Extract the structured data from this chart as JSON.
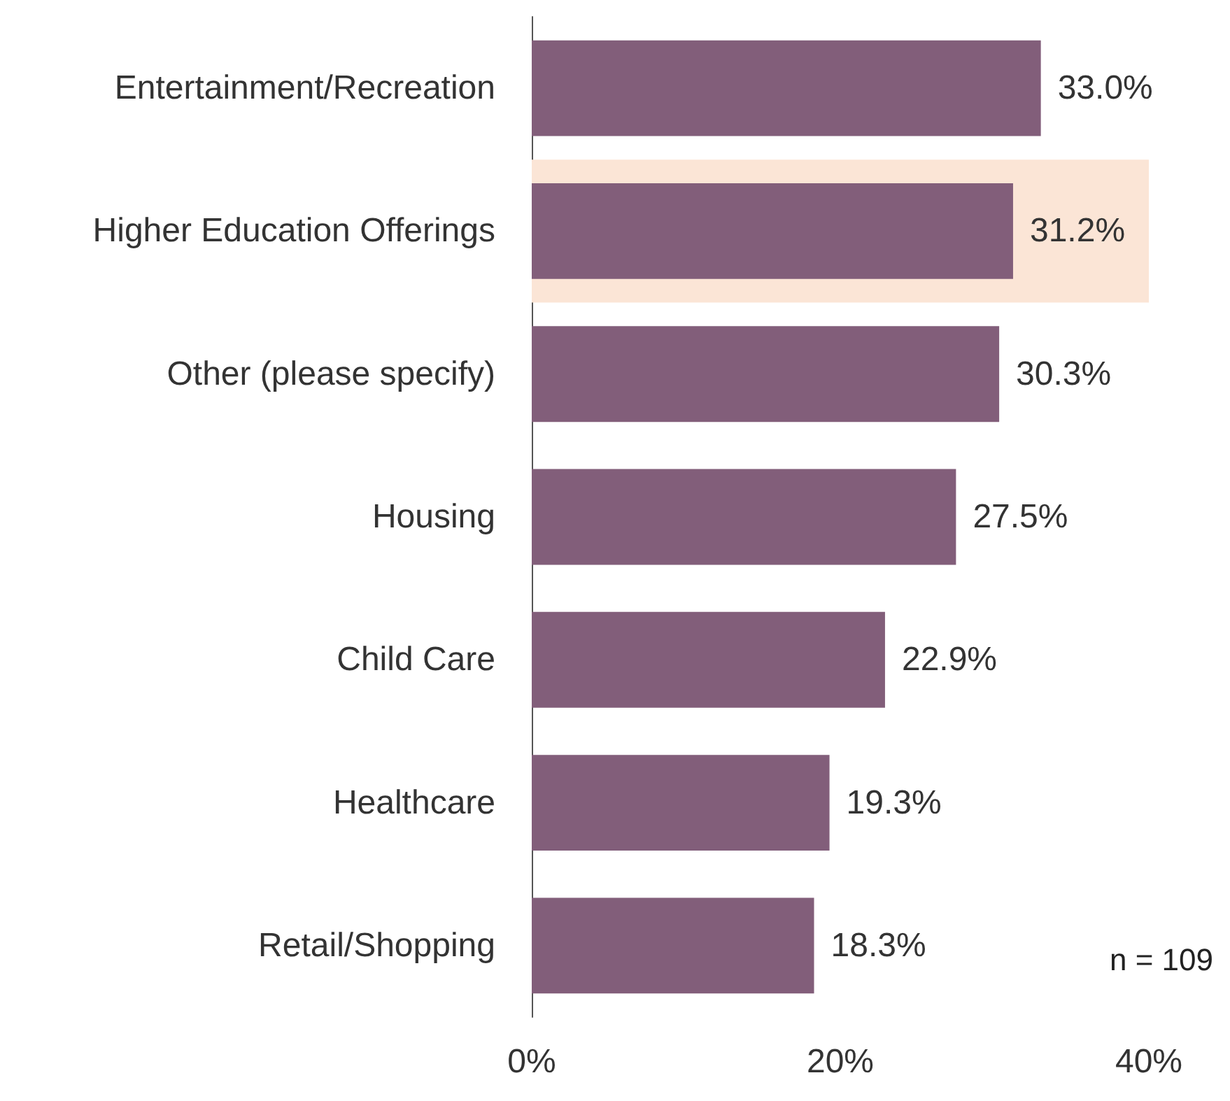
{
  "chart_data": {
    "type": "bar",
    "orientation": "horizontal",
    "categories": [
      "Entertainment/Recreation",
      "Higher Education Offerings",
      "Other (please specify)",
      "Housing",
      "Child Care",
      "Healthcare",
      "Retail/Shopping"
    ],
    "values": [
      33.0,
      31.2,
      30.3,
      27.5,
      22.9,
      19.3,
      18.3
    ],
    "value_labels": [
      "33.0%",
      "31.2%",
      "30.3%",
      "27.5%",
      "22.9%",
      "19.3%",
      "18.3%"
    ],
    "color": "#825e7a",
    "xlim": [
      0,
      40
    ],
    "xticks": [
      {
        "value": 0,
        "label": "0%"
      },
      {
        "value": 20,
        "label": "20%"
      },
      {
        "value": 40,
        "label": "40%"
      }
    ],
    "grid": false,
    "bands": [
      {
        "axis": "y",
        "from": "Higher Education Offerings",
        "to": "Higher Education Offerings",
        "color": "#fbe5d6"
      }
    ],
    "annotations": [
      "n = 109"
    ]
  }
}
